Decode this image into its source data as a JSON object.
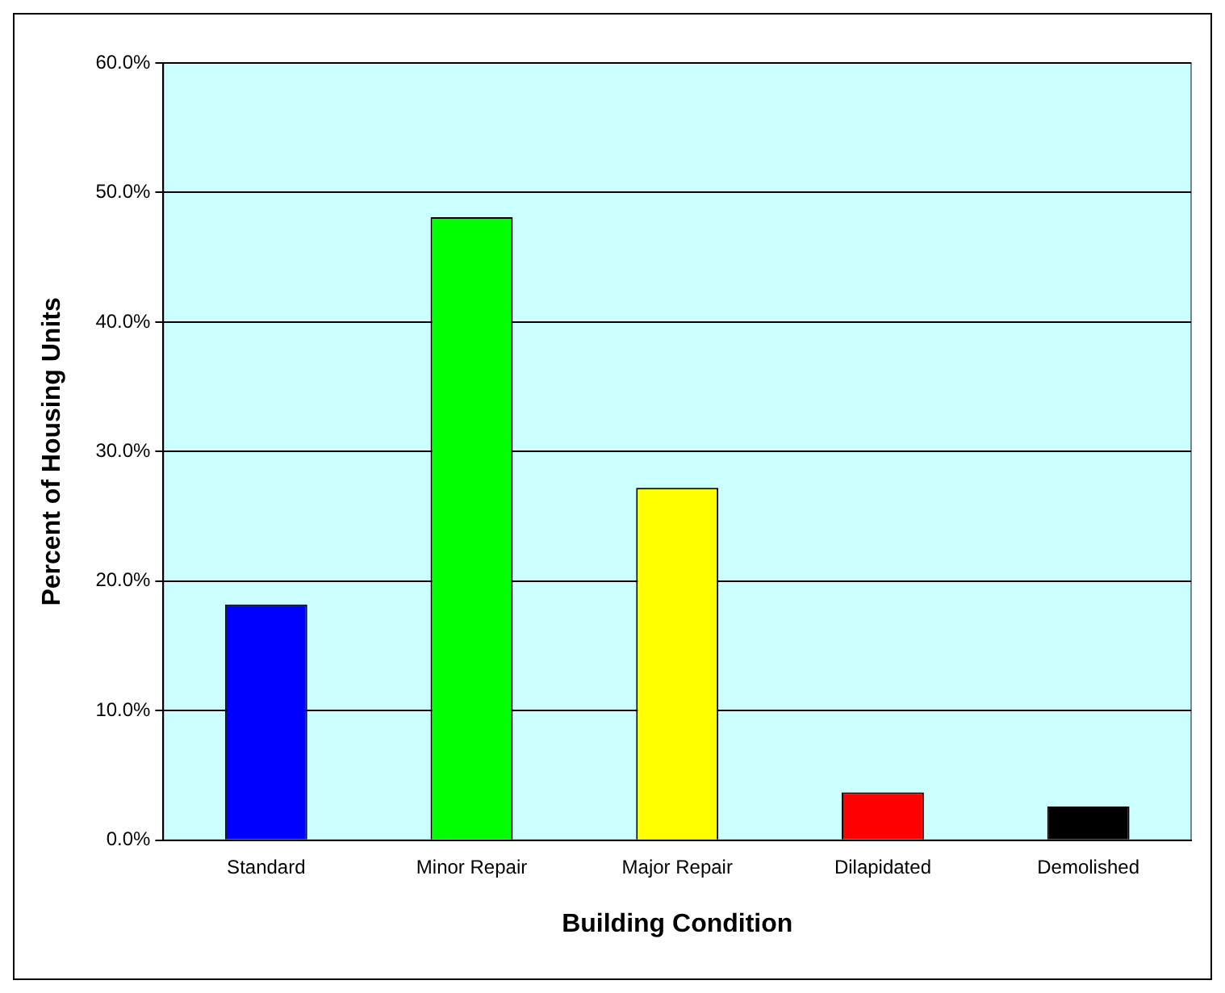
{
  "chart_data": {
    "type": "bar",
    "xlabel": "Building Condition",
    "ylabel": "Percent of Housing Units",
    "categories": [
      "Standard",
      "Minor Repair",
      "Major Repair",
      "Dilapidated",
      "Demolished"
    ],
    "values": [
      18.2,
      48.1,
      27.2,
      3.7,
      2.6
    ],
    "colors": [
      "#0000ff",
      "#00ff00",
      "#ffff00",
      "#ff0000",
      "#000000"
    ],
    "ylim": [
      0,
      60
    ],
    "yticks": [
      {
        "value": 0,
        "label": "0.0%"
      },
      {
        "value": 10,
        "label": "10.0%"
      },
      {
        "value": 20,
        "label": "20.0%"
      },
      {
        "value": 30,
        "label": "30.0%"
      },
      {
        "value": 40,
        "label": "40.0%"
      },
      {
        "value": 50,
        "label": "50.0%"
      },
      {
        "value": 60,
        "label": "60.0%"
      }
    ],
    "grid": "y",
    "legend": false
  }
}
